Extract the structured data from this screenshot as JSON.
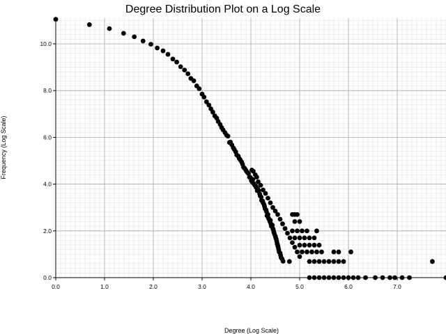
{
  "chart_data": {
    "type": "scatter",
    "title": "Degree Distribution Plot on a Log Scale",
    "xlabel": "Degree (Log Scale)",
    "ylabel": "Frequency (Log Scale)",
    "xlim": [
      0,
      8
    ],
    "ylim": [
      0,
      11.1
    ],
    "xticks": [
      0,
      1,
      2,
      3,
      4,
      5,
      6,
      7
    ],
    "xtick_labels": [
      "0.0",
      "1.0",
      "2.0",
      "3.0",
      "4.0",
      "5.0",
      "6.0",
      "7.0"
    ],
    "yticks": [
      0,
      2,
      4,
      6,
      8,
      10
    ],
    "ytick_labels": [
      "0.0",
      "2.0",
      "4.0",
      "6.0",
      "8.0",
      "10.0"
    ],
    "grid": true,
    "marker_color": "#000000",
    "points": [
      [
        0.0,
        11.05
      ],
      [
        0.69,
        10.82
      ],
      [
        1.1,
        10.65
      ],
      [
        1.39,
        10.45
      ],
      [
        1.61,
        10.3
      ],
      [
        1.79,
        10.12
      ],
      [
        1.95,
        9.98
      ],
      [
        2.08,
        9.82
      ],
      [
        2.2,
        9.7
      ],
      [
        2.3,
        9.55
      ],
      [
        2.4,
        9.35
      ],
      [
        2.48,
        9.22
      ],
      [
        2.56,
        9.02
      ],
      [
        2.64,
        8.88
      ],
      [
        2.71,
        8.72
      ],
      [
        2.77,
        8.52
      ],
      [
        2.83,
        8.42
      ],
      [
        2.89,
        8.2
      ],
      [
        2.94,
        8.08
      ],
      [
        3.0,
        7.85
      ],
      [
        3.04,
        7.72
      ],
      [
        3.09,
        7.52
      ],
      [
        3.14,
        7.38
      ],
      [
        3.18,
        7.22
      ],
      [
        3.22,
        7.08
      ],
      [
        3.26,
        6.92
      ],
      [
        3.3,
        6.82
      ],
      [
        3.33,
        6.68
      ],
      [
        3.37,
        6.55
      ],
      [
        3.4,
        6.42
      ],
      [
        3.43,
        6.32
      ],
      [
        3.47,
        6.2
      ],
      [
        3.5,
        6.1
      ],
      [
        3.53,
        6.05
      ],
      [
        3.56,
        5.78
      ],
      [
        3.58,
        5.8
      ],
      [
        3.61,
        5.68
      ],
      [
        3.64,
        5.55
      ],
      [
        3.66,
        5.48
      ],
      [
        3.69,
        5.38
      ],
      [
        3.71,
        5.25
      ],
      [
        3.74,
        5.2
      ],
      [
        3.76,
        5.1
      ],
      [
        3.78,
        5.05
      ],
      [
        3.81,
        4.95
      ],
      [
        3.83,
        4.85
      ],
      [
        3.85,
        4.72
      ],
      [
        3.87,
        4.68
      ],
      [
        3.89,
        4.62
      ],
      [
        3.91,
        4.55
      ],
      [
        3.93,
        4.5
      ],
      [
        3.95,
        4.45
      ],
      [
        3.97,
        4.3
      ],
      [
        3.99,
        4.28
      ],
      [
        4.01,
        4.15
      ],
      [
        4.03,
        4.08
      ],
      [
        4.04,
        4.2
      ],
      [
        4.06,
        4.02
      ],
      [
        4.08,
        3.95
      ],
      [
        4.1,
        3.92
      ],
      [
        4.11,
        3.85
      ],
      [
        4.13,
        3.72
      ],
      [
        4.14,
        3.8
      ],
      [
        4.16,
        3.72
      ],
      [
        4.18,
        3.58
      ],
      [
        4.19,
        3.5
      ],
      [
        4.21,
        3.45
      ],
      [
        4.22,
        3.3
      ],
      [
        4.24,
        3.28
      ],
      [
        4.25,
        3.2
      ],
      [
        4.27,
        3.12
      ],
      [
        4.28,
        3.05
      ],
      [
        4.29,
        2.95
      ],
      [
        4.31,
        2.9
      ],
      [
        4.32,
        2.82
      ],
      [
        4.33,
        2.65
      ],
      [
        4.35,
        2.7
      ],
      [
        4.36,
        2.55
      ],
      [
        4.37,
        2.5
      ],
      [
        4.39,
        2.4
      ],
      [
        4.4,
        2.45
      ],
      [
        4.41,
        2.3
      ],
      [
        4.42,
        2.2
      ],
      [
        4.44,
        2.25
      ],
      [
        4.45,
        2.1
      ],
      [
        4.46,
        2.05
      ],
      [
        4.47,
        1.95
      ],
      [
        4.48,
        1.88
      ],
      [
        4.5,
        1.78
      ],
      [
        4.51,
        1.7
      ],
      [
        4.52,
        1.65
      ],
      [
        4.53,
        1.55
      ],
      [
        4.54,
        1.45
      ],
      [
        4.55,
        1.38
      ],
      [
        4.56,
        1.3
      ],
      [
        4.57,
        1.2
      ],
      [
        4.58,
        1.1
      ],
      [
        4.6,
        1.05
      ],
      [
        4.61,
        0.95
      ],
      [
        4.62,
        0.85
      ],
      [
        4.64,
        0.8
      ],
      [
        4.66,
        0.7
      ],
      [
        4.02,
        4.6
      ],
      [
        4.05,
        4.55
      ],
      [
        4.09,
        4.4
      ],
      [
        4.12,
        4.3
      ],
      [
        4.15,
        4.1
      ],
      [
        4.2,
        3.95
      ],
      [
        4.25,
        3.75
      ],
      [
        4.3,
        3.6
      ],
      [
        4.35,
        3.4
      ],
      [
        4.4,
        3.2
      ],
      [
        4.45,
        3.0
      ],
      [
        4.5,
        2.85
      ],
      [
        4.55,
        2.7
      ],
      [
        4.6,
        2.5
      ],
      [
        4.65,
        2.3
      ],
      [
        4.7,
        2.1
      ],
      [
        4.75,
        1.9
      ],
      [
        4.8,
        1.7
      ],
      [
        4.85,
        1.5
      ],
      [
        4.9,
        1.3
      ],
      [
        4.95,
        1.1
      ],
      [
        5.0,
        0.9
      ],
      [
        4.79,
        0.69
      ],
      [
        4.85,
        2.7
      ],
      [
        4.9,
        2.7
      ],
      [
        4.95,
        2.7
      ],
      [
        4.9,
        2.4
      ],
      [
        5.0,
        2.4
      ],
      [
        4.85,
        2.0
      ],
      [
        4.95,
        2.0
      ],
      [
        5.05,
        2.0
      ],
      [
        5.15,
        2.0
      ],
      [
        5.35,
        2.0
      ],
      [
        4.9,
        1.7
      ],
      [
        5.0,
        1.7
      ],
      [
        5.1,
        1.7
      ],
      [
        5.2,
        1.7
      ],
      [
        5.3,
        1.7
      ],
      [
        5.0,
        1.39
      ],
      [
        5.1,
        1.39
      ],
      [
        5.2,
        1.39
      ],
      [
        5.3,
        1.39
      ],
      [
        5.4,
        1.39
      ],
      [
        5.05,
        1.1
      ],
      [
        5.15,
        1.1
      ],
      [
        5.25,
        1.1
      ],
      [
        5.35,
        1.1
      ],
      [
        5.45,
        1.1
      ],
      [
        5.7,
        1.1
      ],
      [
        5.8,
        1.1
      ],
      [
        6.05,
        1.1
      ],
      [
        5.2,
        0.69
      ],
      [
        5.3,
        0.69
      ],
      [
        5.4,
        0.69
      ],
      [
        5.5,
        0.69
      ],
      [
        5.6,
        0.69
      ],
      [
        5.7,
        0.69
      ],
      [
        5.8,
        0.69
      ],
      [
        5.9,
        0.69
      ],
      [
        5.2,
        0.0
      ],
      [
        5.3,
        0.0
      ],
      [
        5.4,
        0.0
      ],
      [
        5.5,
        0.0
      ],
      [
        5.6,
        0.0
      ],
      [
        5.7,
        0.0
      ],
      [
        5.8,
        0.0
      ],
      [
        5.9,
        0.0
      ],
      [
        6.0,
        0.0
      ],
      [
        6.1,
        0.0
      ],
      [
        6.2,
        0.0
      ],
      [
        6.35,
        0.0
      ],
      [
        6.55,
        0.0
      ],
      [
        6.7,
        0.0
      ],
      [
        6.85,
        0.0
      ],
      [
        6.95,
        0.0
      ],
      [
        7.1,
        0.0
      ],
      [
        7.25,
        0.0
      ],
      [
        7.72,
        0.69
      ],
      [
        8.0,
        0.0
      ]
    ]
  }
}
